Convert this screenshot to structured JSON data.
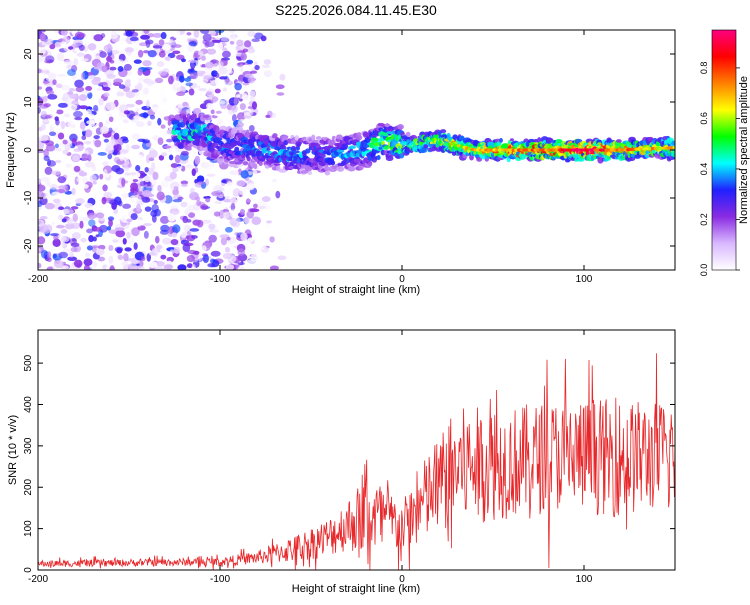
{
  "title": "S225.2026.084.11.45.E30",
  "chart_data": [
    {
      "type": "heatmap",
      "xlabel": "Height of straight line (km)",
      "ylabel": "Frequency (Hz)",
      "xlim": [
        -200,
        150
      ],
      "ylim": [
        -25,
        25
      ],
      "x_ticks": [
        -200,
        -100,
        0,
        100
      ],
      "y_ticks": [
        -20,
        -10,
        0,
        10,
        20
      ],
      "colorbar": {
        "label": "Normalized spectral amplitude",
        "range": [
          0,
          0.95
        ],
        "ticks": [
          "0.0",
          "0.2",
          "0.4",
          "0.6",
          "0.8"
        ],
        "colors": [
          "#ffffff",
          "#d9b8ff",
          "#8a2be2",
          "#2020ff",
          "#00ffff",
          "#00ff00",
          "#ffff00",
          "#ff8000",
          "#ff0000",
          "#ff0080"
        ]
      },
      "ridge": {
        "description_points": [
          {
            "x": -125,
            "f": 4,
            "amp": 0.5
          },
          {
            "x": -110,
            "f": 4,
            "amp": 0.45
          },
          {
            "x": -100,
            "f": 1,
            "amp": 0.35
          },
          {
            "x": -80,
            "f": 0.5,
            "amp": 0.4
          },
          {
            "x": -60,
            "f": -1,
            "amp": 0.4
          },
          {
            "x": -40,
            "f": -1,
            "amp": 0.35
          },
          {
            "x": -20,
            "f": 0,
            "amp": 0.45
          },
          {
            "x": -10,
            "f": 2,
            "amp": 0.6
          },
          {
            "x": 0,
            "f": 1,
            "amp": 0.55
          },
          {
            "x": 20,
            "f": 2,
            "amp": 0.65
          },
          {
            "x": 40,
            "f": 0,
            "amp": 0.7
          },
          {
            "x": 60,
            "f": 0,
            "amp": 0.8
          },
          {
            "x": 80,
            "f": 0,
            "amp": 0.85
          },
          {
            "x": 100,
            "f": 0,
            "amp": 0.95
          },
          {
            "x": 120,
            "f": 0,
            "amp": 0.8
          },
          {
            "x": 150,
            "f": 0.5,
            "amp": 0.7
          }
        ]
      },
      "noise_region": {
        "x_range": [
          -200,
          -80
        ],
        "f_range": [
          -25,
          25
        ],
        "amp_max": 0.35
      }
    },
    {
      "type": "line",
      "xlabel": "Height of straight line (km)",
      "ylabel": "SNR (10 * v/v)",
      "xlim": [
        -200,
        150
      ],
      "ylim": [
        0,
        580
      ],
      "x_ticks": [
        -200,
        -100,
        0,
        100
      ],
      "y_ticks": [
        0,
        100,
        200,
        300,
        400,
        500
      ],
      "series": [
        {
          "color": "#e8272a",
          "envelope": [
            {
              "x": -200,
              "base": 15,
              "amp": 10
            },
            {
              "x": -100,
              "base": 20,
              "amp": 12
            },
            {
              "x": -80,
              "base": 30,
              "amp": 20
            },
            {
              "x": -60,
              "base": 50,
              "amp": 40
            },
            {
              "x": -40,
              "base": 80,
              "amp": 60
            },
            {
              "x": -30,
              "base": 110,
              "amp": 80
            },
            {
              "x": -20,
              "base": 130,
              "amp": 120
            },
            {
              "x": -10,
              "base": 130,
              "amp": 100
            },
            {
              "x": 0,
              "base": 100,
              "amp": 80
            },
            {
              "x": 15,
              "base": 180,
              "amp": 140
            },
            {
              "x": 30,
              "base": 250,
              "amp": 180
            },
            {
              "x": 60,
              "base": 260,
              "amp": 170
            },
            {
              "x": 90,
              "base": 280,
              "amp": 170
            },
            {
              "x": 120,
              "base": 270,
              "amp": 180
            },
            {
              "x": 150,
              "base": 280,
              "amp": 160
            }
          ]
        }
      ]
    }
  ]
}
